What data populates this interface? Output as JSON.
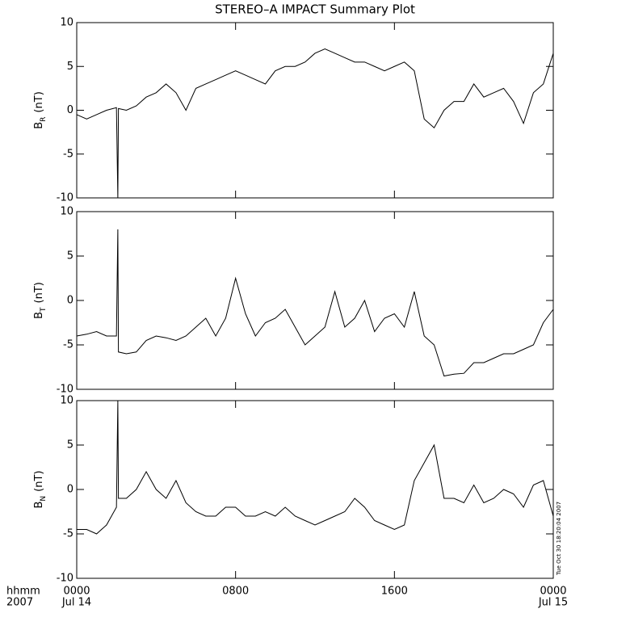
{
  "chart_data": [
    {
      "type": "line",
      "title": "STEREO–A IMPACT Summary Plot",
      "ylabel": {
        "symbol": "B",
        "subscript": "R",
        "unit": "(nT)"
      },
      "xlim": [
        0,
        24
      ],
      "xticks": [
        0,
        8,
        16,
        24
      ],
      "ylim": [
        -10,
        10
      ],
      "yticks": [
        -10,
        -5,
        0,
        5,
        10
      ],
      "series": [
        {
          "color": "#000000",
          "x": [
            0,
            0.5,
            1,
            1.5,
            2,
            2.07,
            2.1,
            2.5,
            3,
            3.5,
            4,
            4.5,
            5,
            5.5,
            6,
            6.5,
            7,
            7.5,
            8,
            8.5,
            9,
            9.5,
            10,
            10.5,
            11,
            11.5,
            12,
            12.5,
            13,
            13.5,
            14,
            14.5,
            15,
            15.5,
            16,
            16.5,
            17,
            17.5,
            18,
            18.5,
            19,
            19.5,
            20,
            20.5,
            21,
            21.5,
            22,
            22.5,
            23,
            23.5,
            24
          ],
          "values": [
            -0.5,
            -1,
            -0.5,
            0,
            0.3,
            -10,
            0.2,
            0,
            0.5,
            1.5,
            2,
            3,
            2,
            0,
            2.5,
            3,
            3.5,
            4,
            4.5,
            4,
            3.5,
            3,
            4.5,
            5,
            5,
            5.5,
            6.5,
            7,
            6.5,
            6,
            5.5,
            5.5,
            5,
            4.5,
            5,
            5.5,
            4.5,
            -1,
            -2,
            0,
            1,
            1,
            3,
            1.5,
            2,
            2.5,
            1,
            -1.5,
            2,
            3,
            6.5
          ]
        }
      ]
    },
    {
      "type": "line",
      "ylabel": {
        "symbol": "B",
        "subscript": "T",
        "unit": "(nT)"
      },
      "xlim": [
        0,
        24
      ],
      "xticks": [
        0,
        8,
        16,
        24
      ],
      "ylim": [
        -10,
        10
      ],
      "yticks": [
        -10,
        -5,
        0,
        5,
        10
      ],
      "series": [
        {
          "color": "#000000",
          "x": [
            0,
            0.5,
            1,
            1.5,
            2,
            2.07,
            2.1,
            2.5,
            3,
            3.5,
            4,
            4.5,
            5,
            5.5,
            6,
            6.5,
            7,
            7.5,
            8,
            8.5,
            9,
            9.5,
            10,
            10.5,
            11,
            11.5,
            12,
            12.5,
            13,
            13.5,
            14,
            14.5,
            15,
            15.5,
            16,
            16.5,
            17,
            17.5,
            18,
            18.5,
            19,
            19.5,
            20,
            20.5,
            21,
            21.5,
            22,
            22.5,
            23,
            23.5,
            24
          ],
          "values": [
            -4,
            -3.8,
            -3.5,
            -4,
            -4,
            8,
            -5.8,
            -6,
            -5.8,
            -4.5,
            -4,
            -4.2,
            -4.5,
            -4,
            -3,
            -2,
            -4,
            -2,
            2.5,
            -1.5,
            -4,
            -2.5,
            -2,
            -1,
            -3,
            -5,
            -4,
            -3,
            1,
            -3,
            -2,
            0,
            -3.5,
            -2,
            -1.5,
            -3,
            1,
            -4,
            -5,
            -8.5,
            -8.3,
            -8.2,
            -7,
            -7,
            -6.5,
            -6,
            -6,
            -5.5,
            -5,
            -2.5,
            -1
          ]
        }
      ]
    },
    {
      "type": "line",
      "ylabel": {
        "symbol": "B",
        "subscript": "N",
        "unit": "(nT)"
      },
      "xlim": [
        0,
        24
      ],
      "xticks": [
        {
          "value": 0,
          "label": "0000"
        },
        {
          "value": 8,
          "label": "0800"
        },
        {
          "value": 16,
          "label": "1600"
        },
        {
          "value": 24,
          "label": "0000"
        }
      ],
      "xtick_dates": [
        {
          "value": 0,
          "label": "Jul 14"
        },
        {
          "value": 24,
          "label": "Jul 15"
        }
      ],
      "xlabel": "hhmm",
      "year_label": "2007",
      "timestamp": "Tue Oct 30 18:20:04 2007",
      "ylim": [
        -10,
        10
      ],
      "yticks": [
        -10,
        -5,
        0,
        5,
        10
      ],
      "series": [
        {
          "color": "#000000",
          "x": [
            0,
            0.5,
            1,
            1.5,
            2,
            2.07,
            2.1,
            2.5,
            3,
            3.5,
            4,
            4.5,
            5,
            5.5,
            6,
            6.5,
            7,
            7.5,
            8,
            8.5,
            9,
            9.5,
            10,
            10.5,
            11,
            11.5,
            12,
            12.5,
            13,
            13.5,
            14,
            14.5,
            15,
            15.5,
            16,
            16.5,
            17,
            17.5,
            18,
            18.5,
            19,
            19.5,
            20,
            20.5,
            21,
            21.5,
            22,
            22.5,
            23,
            23.5,
            24
          ],
          "values": [
            -4.5,
            -4.5,
            -5,
            -4,
            -2,
            10,
            -1,
            -1,
            0,
            2,
            0,
            -1,
            1,
            -1.5,
            -2.5,
            -3,
            -3,
            -2,
            -2,
            -3,
            -3,
            -2.5,
            -3,
            -2,
            -3,
            -3.5,
            -4,
            -3.5,
            -3,
            -2.5,
            -1,
            -2,
            -3.5,
            -4,
            -4.5,
            -4,
            1,
            3,
            5,
            -1,
            -1,
            -1.5,
            0.5,
            -1.5,
            -1,
            0,
            -0.5,
            -2,
            0.5,
            1,
            -3
          ]
        }
      ]
    }
  ]
}
